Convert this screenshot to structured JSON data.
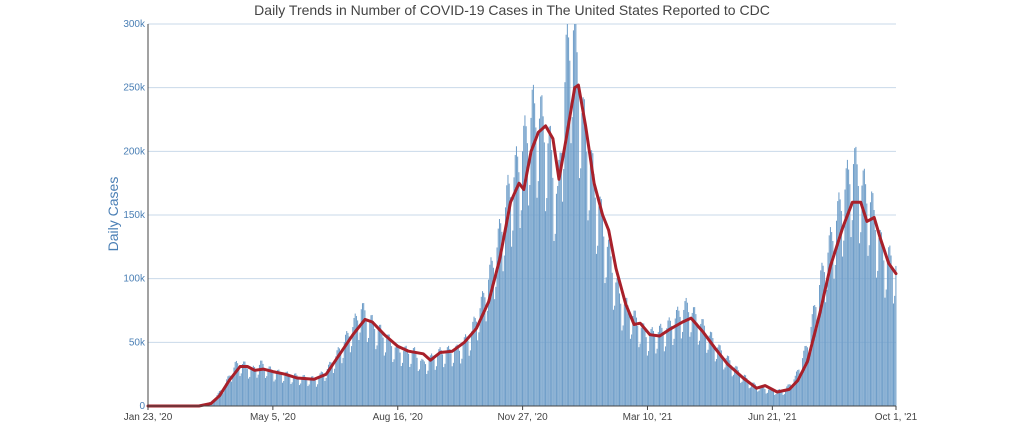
{
  "chart_data": {
    "type": "bar",
    "title": "Daily Trends in Number of COVID-19 Cases in The United States Reported to CDC",
    "xlabel": "",
    "ylabel": "Daily Cases",
    "ylim": [
      0,
      300000
    ],
    "y_ticks": [
      {
        "value": 0,
        "label": "0"
      },
      {
        "value": 50000,
        "label": "50k"
      },
      {
        "value": 100000,
        "label": "100k"
      },
      {
        "value": 150000,
        "label": "150k"
      },
      {
        "value": 200000,
        "label": "200k"
      },
      {
        "value": 250000,
        "label": "250k"
      },
      {
        "value": 300000,
        "label": "300k"
      }
    ],
    "x_range": [
      "2020-01-23",
      "2021-10-01"
    ],
    "x_ticks": [
      {
        "date": "2020-01-23",
        "label": "Jan 23, '20"
      },
      {
        "date": "2020-05-05",
        "label": "May 5, '20"
      },
      {
        "date": "2020-08-16",
        "label": "Aug 16, '20"
      },
      {
        "date": "2020-11-27",
        "label": "Nov 27, '20"
      },
      {
        "date": "2021-03-10",
        "label": "Mar 10, '21"
      },
      {
        "date": "2021-06-21",
        "label": "Jun 21, '21"
      },
      {
        "date": "2021-10-01",
        "label": "Oct 1, '21"
      }
    ],
    "grid": "horizontal",
    "series": [
      {
        "type": "bar",
        "color": "#6f9ec9",
        "description": "daily new cases (daily values shown as bars; key points listed)",
        "points": [
          [
            "2020-01-23",
            0
          ],
          [
            "2020-03-01",
            0
          ],
          [
            "2020-03-15",
            3000
          ],
          [
            "2020-03-25",
            14000
          ],
          [
            "2020-04-04",
            32000
          ],
          [
            "2020-04-10",
            33000
          ],
          [
            "2020-04-18",
            28000
          ],
          [
            "2020-04-25",
            33000
          ],
          [
            "2020-05-05",
            27000
          ],
          [
            "2020-05-20",
            24000
          ],
          [
            "2020-06-01",
            22000
          ],
          [
            "2020-06-10",
            21000
          ],
          [
            "2020-06-20",
            30000
          ],
          [
            "2020-06-30",
            45000
          ],
          [
            "2020-07-10",
            62000
          ],
          [
            "2020-07-17",
            76000
          ],
          [
            "2020-07-25",
            66000
          ],
          [
            "2020-08-05",
            55000
          ],
          [
            "2020-08-16",
            44000
          ],
          [
            "2020-08-30",
            42000
          ],
          [
            "2020-09-06",
            33000
          ],
          [
            "2020-09-20",
            42000
          ],
          [
            "2020-10-05",
            44000
          ],
          [
            "2020-10-15",
            56000
          ],
          [
            "2020-10-25",
            82000
          ],
          [
            "2020-11-05",
            120000
          ],
          [
            "2020-11-15",
            165000
          ],
          [
            "2020-11-27",
            200000
          ],
          [
            "2020-12-05",
            230000
          ],
          [
            "2020-12-12",
            225000
          ],
          [
            "2020-12-20",
            200000
          ],
          [
            "2020-12-26",
            160000
          ],
          [
            "2021-01-02",
            270000
          ],
          [
            "2021-01-08",
            295000
          ],
          [
            "2021-01-15",
            230000
          ],
          [
            "2021-01-25",
            175000
          ],
          [
            "2021-02-05",
            125000
          ],
          [
            "2021-02-15",
            85000
          ],
          [
            "2021-02-25",
            72000
          ],
          [
            "2021-03-10",
            55000
          ],
          [
            "2021-03-25",
            60000
          ],
          [
            "2021-04-05",
            72000
          ],
          [
            "2021-04-12",
            78000
          ],
          [
            "2021-04-25",
            62000
          ],
          [
            "2021-05-10",
            42000
          ],
          [
            "2021-05-25",
            26000
          ],
          [
            "2021-06-05",
            17000
          ],
          [
            "2021-06-21",
            12000
          ],
          [
            "2021-07-01",
            12000
          ],
          [
            "2021-07-10",
            22000
          ],
          [
            "2021-07-20",
            48000
          ],
          [
            "2021-07-30",
            95000
          ],
          [
            "2021-08-10",
            135000
          ],
          [
            "2021-08-20",
            170000
          ],
          [
            "2021-08-27",
            190000
          ],
          [
            "2021-09-02",
            175000
          ],
          [
            "2021-09-10",
            160000
          ],
          [
            "2021-09-20",
            120000
          ],
          [
            "2021-10-01",
            110000
          ]
        ]
      },
      {
        "type": "line",
        "color": "#a8202a",
        "description": "7-day moving average",
        "points": [
          [
            "2020-01-23",
            0
          ],
          [
            "2020-03-05",
            0
          ],
          [
            "2020-03-15",
            2000
          ],
          [
            "2020-03-22",
            8000
          ],
          [
            "2020-03-30",
            20000
          ],
          [
            "2020-04-08",
            31000
          ],
          [
            "2020-04-14",
            31000
          ],
          [
            "2020-04-20",
            28000
          ],
          [
            "2020-04-27",
            29000
          ],
          [
            "2020-05-05",
            27000
          ],
          [
            "2020-05-15",
            25000
          ],
          [
            "2020-05-25",
            22000
          ],
          [
            "2020-06-08",
            21000
          ],
          [
            "2020-06-18",
            25000
          ],
          [
            "2020-06-28",
            39000
          ],
          [
            "2020-07-10",
            56000
          ],
          [
            "2020-07-20",
            68000
          ],
          [
            "2020-07-26",
            66000
          ],
          [
            "2020-08-05",
            56000
          ],
          [
            "2020-08-16",
            47000
          ],
          [
            "2020-08-25",
            43000
          ],
          [
            "2020-09-06",
            41000
          ],
          [
            "2020-09-12",
            36000
          ],
          [
            "2020-09-20",
            42000
          ],
          [
            "2020-09-30",
            43000
          ],
          [
            "2020-10-10",
            50000
          ],
          [
            "2020-10-20",
            61000
          ],
          [
            "2020-10-30",
            82000
          ],
          [
            "2020-11-08",
            115000
          ],
          [
            "2020-11-17",
            160000
          ],
          [
            "2020-11-24",
            175000
          ],
          [
            "2020-11-28",
            170000
          ],
          [
            "2020-12-04",
            200000
          ],
          [
            "2020-12-10",
            215000
          ],
          [
            "2020-12-16",
            220000
          ],
          [
            "2020-12-22",
            210000
          ],
          [
            "2020-12-27",
            178000
          ],
          [
            "2021-01-02",
            210000
          ],
          [
            "2021-01-09",
            250000
          ],
          [
            "2021-01-12",
            252000
          ],
          [
            "2021-01-18",
            220000
          ],
          [
            "2021-01-25",
            175000
          ],
          [
            "2021-02-01",
            150000
          ],
          [
            "2021-02-06",
            138000
          ],
          [
            "2021-02-12",
            108000
          ],
          [
            "2021-02-20",
            80000
          ],
          [
            "2021-02-27",
            64000
          ],
          [
            "2021-03-04",
            65000
          ],
          [
            "2021-03-12",
            56000
          ],
          [
            "2021-03-20",
            55000
          ],
          [
            "2021-03-28",
            60000
          ],
          [
            "2021-04-08",
            66000
          ],
          [
            "2021-04-15",
            69000
          ],
          [
            "2021-04-25",
            58000
          ],
          [
            "2021-05-05",
            45000
          ],
          [
            "2021-05-15",
            33000
          ],
          [
            "2021-05-28",
            22000
          ],
          [
            "2021-06-08",
            14000
          ],
          [
            "2021-06-15",
            16000
          ],
          [
            "2021-06-25",
            11000
          ],
          [
            "2021-07-05",
            13000
          ],
          [
            "2021-07-12",
            20000
          ],
          [
            "2021-07-20",
            35000
          ],
          [
            "2021-07-30",
            72000
          ],
          [
            "2021-08-08",
            110000
          ],
          [
            "2021-08-18",
            140000
          ],
          [
            "2021-08-26",
            160000
          ],
          [
            "2021-09-02",
            160000
          ],
          [
            "2021-09-07",
            145000
          ],
          [
            "2021-09-13",
            148000
          ],
          [
            "2021-09-18",
            132000
          ],
          [
            "2021-09-25",
            112000
          ],
          [
            "2021-10-01",
            104000
          ]
        ]
      }
    ]
  }
}
